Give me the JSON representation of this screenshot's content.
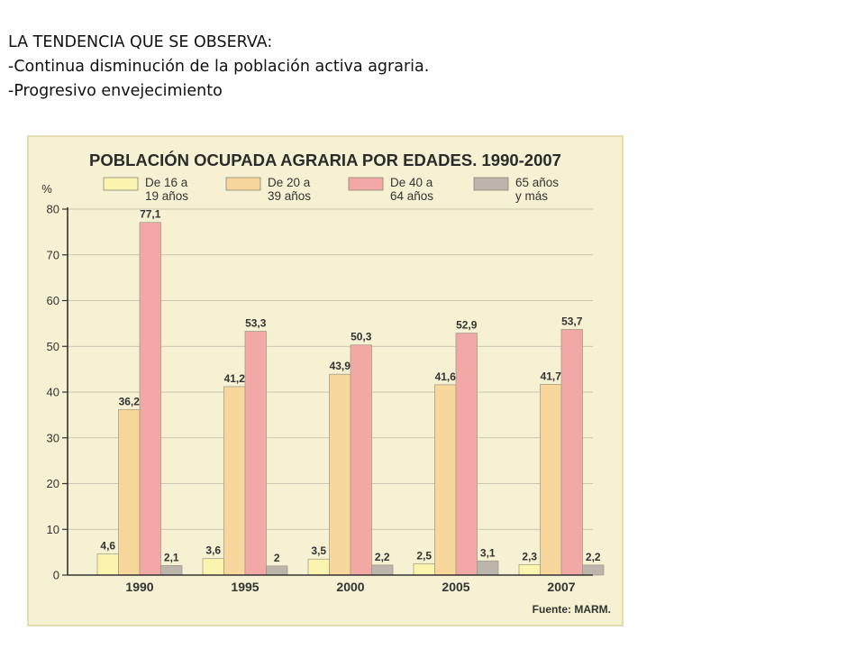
{
  "slide": {
    "lines": [
      "LA TENDENCIA QUE SE OBSERVA:",
      "-Continua disminución de la población activa agraria.",
      "-Progresivo envejecimiento"
    ]
  },
  "colors": {
    "panel": "#f6f1d2",
    "panel_border": "#e4ddb0",
    "axis": "#333333",
    "grid": "#b9b7a4"
  },
  "chart_data": {
    "type": "bar",
    "title": "POBLACIÓN OCUPADA AGRARIA POR EDADES. 1990-2007",
    "ylabel": "%",
    "ylim": [
      0,
      80
    ],
    "yticks": [
      0,
      10,
      20,
      30,
      40,
      50,
      60,
      70,
      80
    ],
    "grid": true,
    "legend_position": "top",
    "categories": [
      "1990",
      "1995",
      "2000",
      "2005",
      "2007"
    ],
    "series": [
      {
        "name": "De 16 a 19 años",
        "legend_lines": [
          "De 16 a",
          "19 años"
        ],
        "color": "#fbf4ae",
        "values": [
          4.6,
          3.6,
          3.5,
          2.5,
          2.3
        ],
        "labels": [
          "4,6",
          "3,6",
          "3,5",
          "2,5",
          "2,3"
        ]
      },
      {
        "name": "De 20 a 39 años",
        "legend_lines": [
          "De 20 a",
          "39 años"
        ],
        "color": "#f7d79b",
        "values": [
          36.2,
          41.2,
          43.9,
          41.6,
          41.7
        ],
        "labels": [
          "36,2",
          "41,2",
          "43,9",
          "41,6",
          "41,7"
        ]
      },
      {
        "name": "De 40 a 64 años",
        "legend_lines": [
          "De 40 a",
          "64 años"
        ],
        "color": "#f2a9a6",
        "values": [
          77.1,
          53.3,
          50.3,
          52.9,
          53.7
        ],
        "labels": [
          "77,1",
          "53,3",
          "50,3",
          "52,9",
          "53,7"
        ]
      },
      {
        "name": "65 años y más",
        "legend_lines": [
          "65 años",
          "y más"
        ],
        "color": "#bcb5ac",
        "values": [
          2.1,
          2,
          2.2,
          3.1,
          2.2
        ],
        "labels": [
          "2,1",
          "2",
          "2,2",
          "3,1",
          "2,2"
        ]
      }
    ],
    "source": "Fuente: MARM."
  }
}
